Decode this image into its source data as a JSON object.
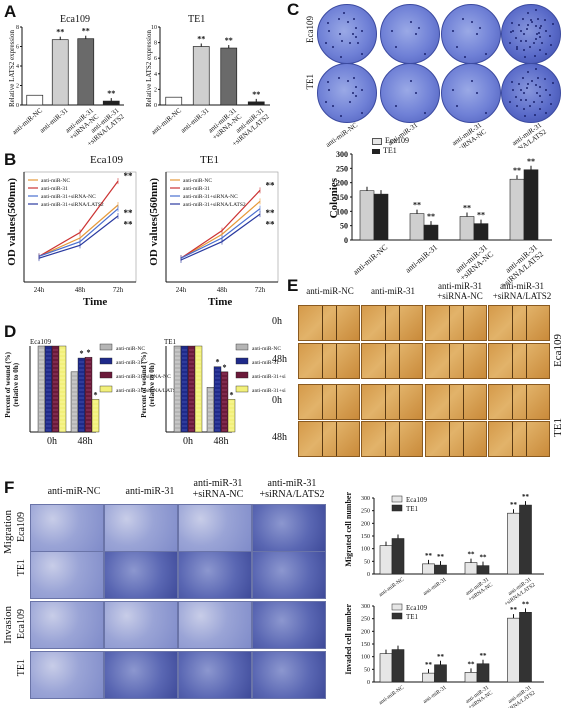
{
  "panels": {
    "A": "A",
    "B": "B",
    "C": "C",
    "D": "D",
    "E": "E",
    "F": "F"
  },
  "panelA": {
    "eca_title": "Eca109",
    "te1_title": "TE1",
    "ylabel": "Relative LATS2 expression",
    "eca_yticks": [
      "0",
      "2",
      "4",
      "6",
      "8"
    ],
    "te1_yticks": [
      "0",
      "2",
      "4",
      "6",
      "8",
      "10"
    ],
    "groups": [
      "anti-miR-NC",
      "anti-miR-31",
      "anti-miR-31\n+siRNA-NC",
      "anti-miR-31\n+siRNA/LATS2"
    ],
    "sig": "**"
  },
  "panelB": {
    "eca_title": "Eca109",
    "te1_title": "TE1",
    "ylabel": "OD values(560nm)",
    "xlabel": "Time",
    "xticks": [
      "24h",
      "48h",
      "72h"
    ],
    "legend": [
      "anti-miR-NC",
      "anti-miR-31",
      "anti-miR-31+siRNA-NC",
      "anti-miR-31+siRNA/LATS2"
    ],
    "sig": "**"
  },
  "panelC": {
    "rows": [
      "Eca109",
      "TE1"
    ],
    "groups": [
      "anti-miR-NC",
      "anti-miR-31",
      "anti-miR-31\n+siRNA-NC",
      "anti-miR-31\n+siRNA/LATS2"
    ],
    "ylabel": "Colonies",
    "yticks": [
      "0",
      "50",
      "100",
      "150",
      "200",
      "250",
      "300"
    ],
    "legend": [
      "Eca109",
      "TE1"
    ],
    "sig": "**"
  },
  "panelD": {
    "eca_title": "Eca109",
    "te1_title": "TE1",
    "ylabel": "Percent of wound (%)\n(relative to 0h)",
    "xticks": [
      "0h",
      "48h"
    ],
    "legend": [
      "anti-miR-NC",
      "anti-miR-31",
      "anti-miR-31+siRNA-NC",
      "anti-miR-31+siRNA/LATS2"
    ],
    "sig": "*"
  },
  "panelE": {
    "cols": [
      "anti-miR-NC",
      "anti-miR-31",
      "anti-miR-31\n+siRNA-NC",
      "anti-miR-31\n+siRNA/LATS2"
    ],
    "times": [
      "0h",
      "48h",
      "0h",
      "48h"
    ],
    "cells": [
      "Eca109",
      "TE1"
    ]
  },
  "panelF": {
    "cols": [
      "anti-miR-NC",
      "anti-miR-31",
      "anti-miR-31\n+siRNA-NC",
      "anti-miR-31\n+siRNA/LATS2"
    ],
    "assays": [
      "Migration",
      "Invasion"
    ],
    "cells": [
      "Eca109",
      "TE1"
    ],
    "mig_ylabel": "Migrated cell number",
    "inv_ylabel": "Invaded cell number",
    "yticks": [
      "0",
      "50",
      "100",
      "150",
      "200",
      "250",
      "300"
    ],
    "legend": [
      "Eca109",
      "TE1"
    ],
    "sig": "**"
  },
  "colors": {
    "black": "#222222",
    "grey": "#9a9a9a",
    "light": "#e6e6e6",
    "navy": "#1f2a8a",
    "maroon": "#6b1a3a",
    "yellow": "#f2f07a",
    "orange": "#e69a3a",
    "blue": "#4a6fd0"
  },
  "chart_data": [
    {
      "type": "bar",
      "title": "Eca109",
      "ylabel": "Relative LATS2 expression",
      "ylim": [
        0,
        8
      ],
      "categories": [
        "anti-miR-NC",
        "anti-miR-31",
        "anti-miR-31+siRNA-NC",
        "anti-miR-31+siRNA/LATS2"
      ],
      "values": [
        1.0,
        6.7,
        6.8,
        0.4
      ]
    },
    {
      "type": "bar",
      "title": "TE1",
      "ylabel": "Relative LATS2 expression",
      "ylim": [
        0,
        10
      ],
      "categories": [
        "anti-miR-NC",
        "anti-miR-31",
        "anti-miR-31+siRNA-NC",
        "anti-miR-31+siRNA/LATS2"
      ],
      "values": [
        1.0,
        7.5,
        7.3,
        0.4
      ]
    },
    {
      "type": "line",
      "title": "Eca109",
      "xlabel": "Time",
      "ylabel": "OD values(560nm)",
      "x": [
        "24h",
        "48h",
        "72h"
      ],
      "series": [
        {
          "name": "anti-miR-NC",
          "values": [
            0.14,
            0.24,
            0.42
          ]
        },
        {
          "name": "anti-miR-31",
          "values": [
            0.14,
            0.27,
            0.55
          ]
        },
        {
          "name": "anti-miR-31+siRNA-NC",
          "values": [
            0.14,
            0.22,
            0.4
          ]
        },
        {
          "name": "anti-miR-31+siRNA/LATS2",
          "values": [
            0.13,
            0.2,
            0.36
          ]
        }
      ]
    },
    {
      "type": "line",
      "title": "TE1",
      "xlabel": "Time",
      "ylabel": "OD values(560nm)",
      "x": [
        "24h",
        "48h",
        "72h"
      ],
      "series": [
        {
          "name": "anti-miR-NC",
          "values": [
            0.13,
            0.26,
            0.44
          ]
        },
        {
          "name": "anti-miR-31",
          "values": [
            0.13,
            0.28,
            0.5
          ]
        },
        {
          "name": "anti-miR-31+siRNA-NC",
          "values": [
            0.13,
            0.24,
            0.4
          ]
        },
        {
          "name": "anti-miR-31+siRNA/LATS2",
          "values": [
            0.12,
            0.22,
            0.37
          ]
        }
      ]
    },
    {
      "type": "bar",
      "ylabel": "Colonies",
      "ylim": [
        0,
        300
      ],
      "categories": [
        "anti-miR-NC",
        "anti-miR-31",
        "anti-miR-31+siRNA-NC",
        "anti-miR-31+siRNA/LATS2"
      ],
      "series": [
        {
          "name": "Eca109",
          "values": [
            172,
            92,
            82,
            212
          ]
        },
        {
          "name": "TE1",
          "values": [
            160,
            52,
            57,
            245
          ]
        }
      ]
    },
    {
      "type": "bar",
      "title": "Eca109",
      "ylabel": "Percent of wound (%)\n(relative to 0h)",
      "categories": [
        "0h",
        "48h"
      ],
      "series": [
        {
          "name": "anti-miR-NC",
          "values": [
            100,
            70
          ]
        },
        {
          "name": "anti-miR-31",
          "values": [
            100,
            86
          ]
        },
        {
          "name": "anti-miR-31+siRNA-NC",
          "values": [
            100,
            87
          ]
        },
        {
          "name": "anti-miR-31+siRNA/LATS2",
          "values": [
            100,
            38
          ]
        }
      ]
    },
    {
      "type": "bar",
      "title": "TE1",
      "ylabel": "Percent of wound (%)\n(relative to 0h)",
      "categories": [
        "0h",
        "48h"
      ],
      "series": [
        {
          "name": "anti-miR-NC",
          "values": [
            100,
            52
          ]
        },
        {
          "name": "anti-miR-31",
          "values": [
            100,
            76
          ]
        },
        {
          "name": "anti-miR-31+siRNA-NC",
          "values": [
            100,
            70
          ]
        },
        {
          "name": "anti-miR-31+siRNA/LATS2",
          "values": [
            100,
            38
          ]
        }
      ]
    },
    {
      "type": "bar",
      "ylabel": "Migrated cell number",
      "ylim": [
        0,
        300
      ],
      "categories": [
        "anti-miR-NC",
        "anti-miR-31",
        "anti-miR-31+siRNA-NC",
        "anti-miR-31+siRNA/LATS2"
      ],
      "series": [
        {
          "name": "Eca109",
          "values": [
            112,
            40,
            45,
            240
          ]
        },
        {
          "name": "TE1",
          "values": [
            140,
            35,
            33,
            272
          ]
        }
      ]
    },
    {
      "type": "bar",
      "ylabel": "Invaded cell number",
      "ylim": [
        0,
        300
      ],
      "categories": [
        "anti-miR-NC",
        "anti-miR-31",
        "anti-miR-31+siRNA-NC",
        "anti-miR-31+siRNA/LATS2"
      ],
      "series": [
        {
          "name": "Eca109",
          "values": [
            112,
            35,
            38,
            252
          ]
        },
        {
          "name": "TE1",
          "values": [
            128,
            68,
            72,
            275
          ]
        }
      ]
    }
  ]
}
